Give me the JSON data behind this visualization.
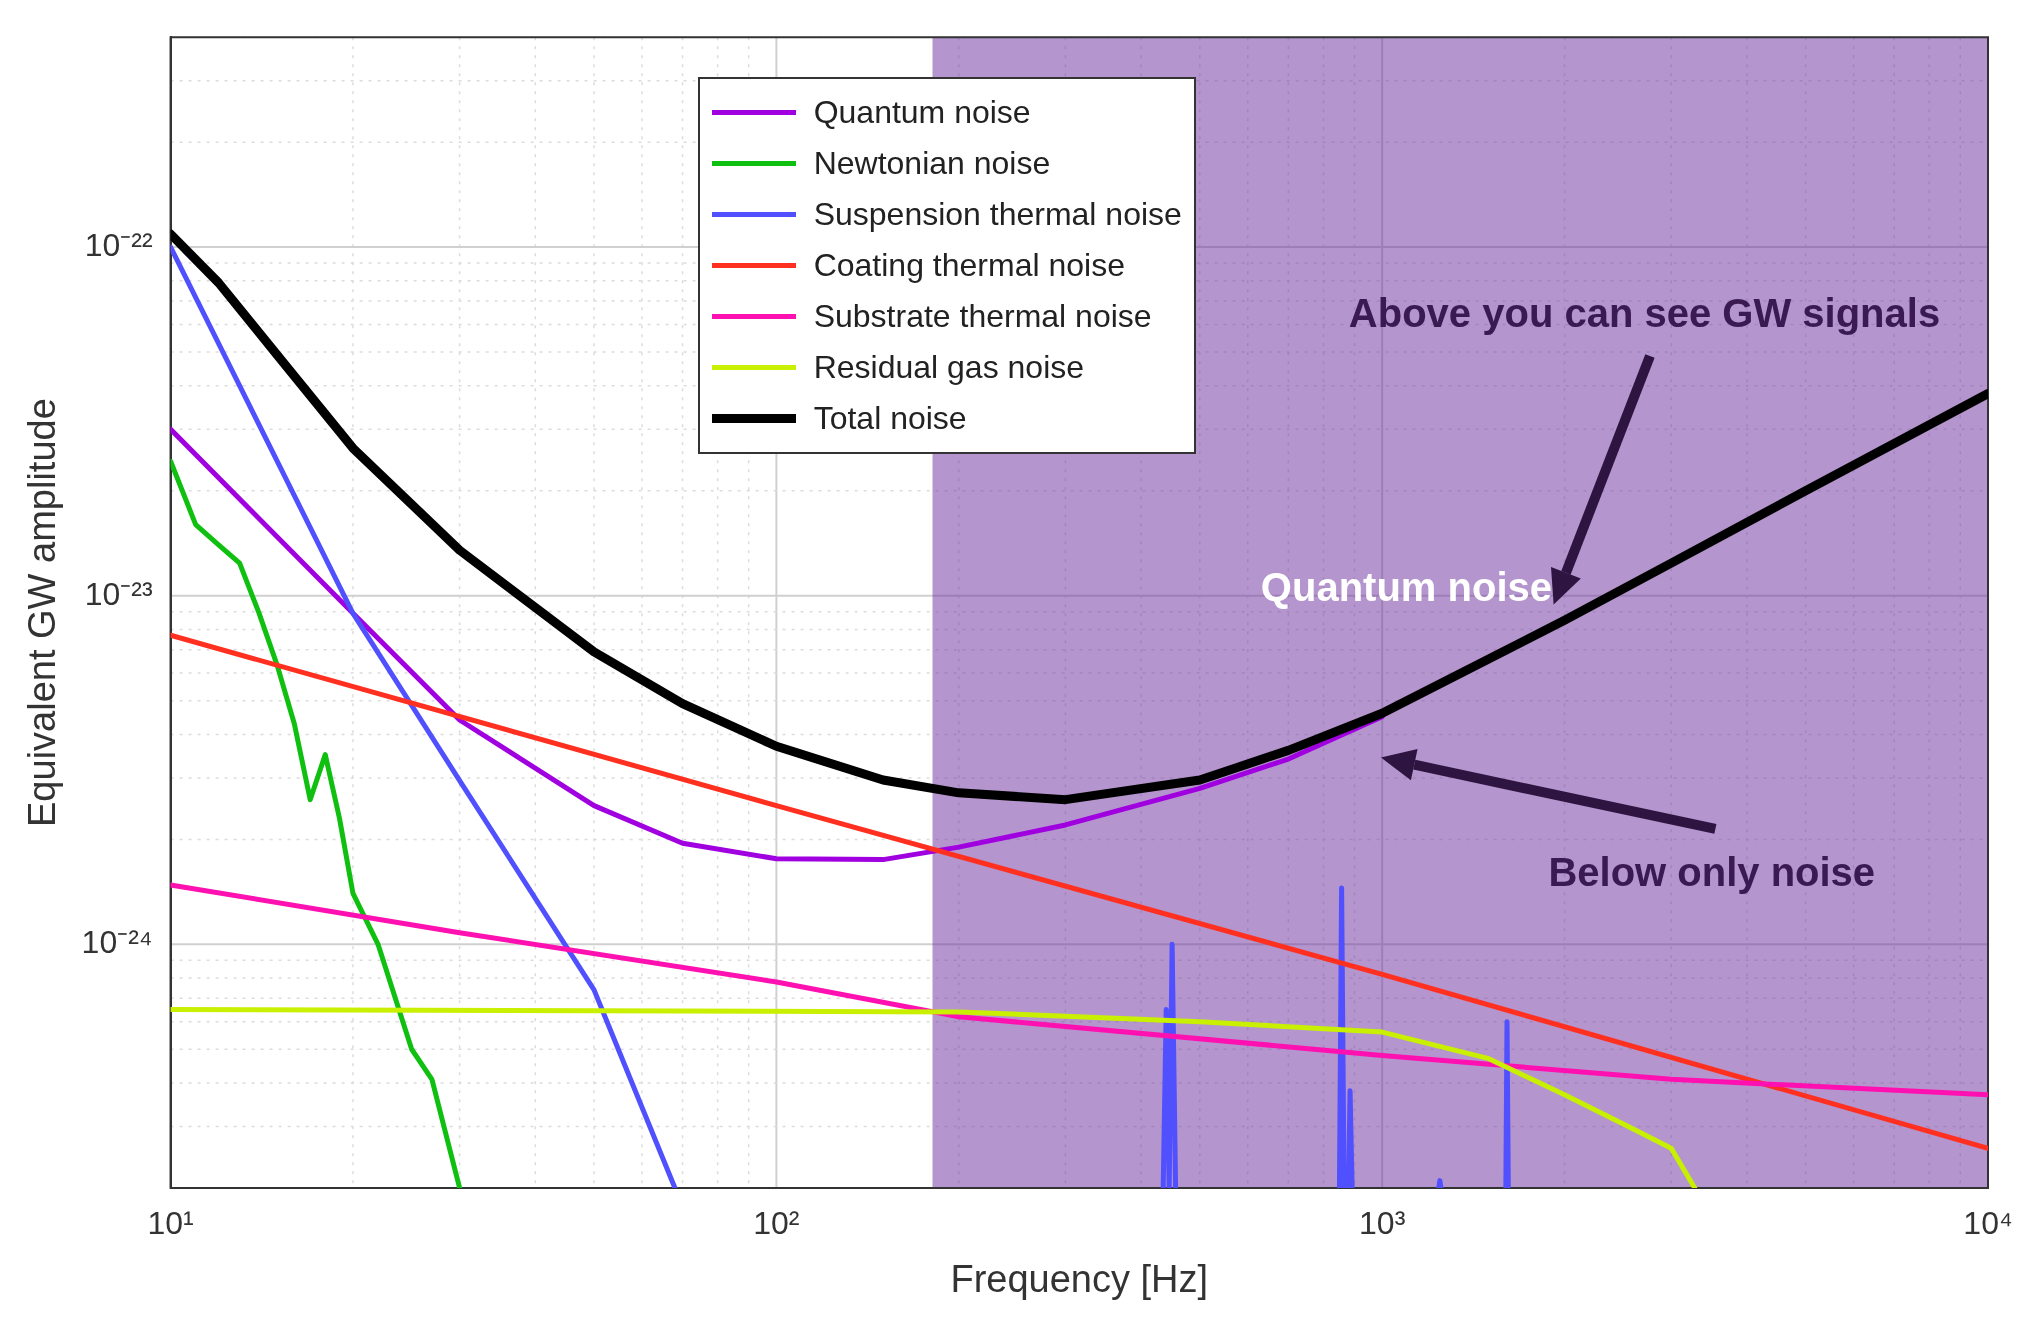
{
  "chart_data": {
    "type": "line",
    "xlabel": "Frequency [Hz]",
    "ylabel": "Equivalent GW amplitude",
    "log": "xy",
    "grid": true,
    "legend": "top",
    "line_style": "solid",
    "marker": "none",
    "xlim": [
      10,
      10000
    ],
    "ylim": [
      2e-25,
      4e-22
    ],
    "xticks": [
      {
        "value": 10,
        "label": "10¹"
      },
      {
        "value": 20,
        "label": null
      },
      {
        "value": 30,
        "label": null
      },
      {
        "value": 40,
        "label": null
      },
      {
        "value": 50,
        "label": null
      },
      {
        "value": 60,
        "label": null
      },
      {
        "value": 70,
        "label": null
      },
      {
        "value": 80,
        "label": null
      },
      {
        "value": 90,
        "label": null
      },
      {
        "value": 100,
        "label": "10²"
      },
      {
        "value": 200,
        "label": null
      },
      {
        "value": 300,
        "label": null
      },
      {
        "value": 400,
        "label": null
      },
      {
        "value": 500,
        "label": null
      },
      {
        "value": 600,
        "label": null
      },
      {
        "value": 700,
        "label": null
      },
      {
        "value": 800,
        "label": null
      },
      {
        "value": 900,
        "label": null
      },
      {
        "value": 1000,
        "label": "10³"
      },
      {
        "value": 2000,
        "label": null
      },
      {
        "value": 3000,
        "label": null
      },
      {
        "value": 4000,
        "label": null
      },
      {
        "value": 5000,
        "label": null
      },
      {
        "value": 6000,
        "label": null
      },
      {
        "value": 7000,
        "label": null
      },
      {
        "value": 8000,
        "label": null
      },
      {
        "value": 9000,
        "label": null
      },
      {
        "value": 10000,
        "label": "10⁴"
      }
    ],
    "yticks": [
      {
        "value": 2e-25,
        "label": null
      },
      {
        "value": 3e-25,
        "label": null
      },
      {
        "value": 4e-25,
        "label": null
      },
      {
        "value": 5e-25,
        "label": null
      },
      {
        "value": 6e-25,
        "label": null
      },
      {
        "value": 7e-25,
        "label": null
      },
      {
        "value": 8e-25,
        "label": null
      },
      {
        "value": 9e-25,
        "label": null
      },
      {
        "value": 1e-24,
        "label": "10⁻²⁴"
      },
      {
        "value": 2e-24,
        "label": null
      },
      {
        "value": 3e-24,
        "label": null
      },
      {
        "value": 4e-24,
        "label": null
      },
      {
        "value": 5e-24,
        "label": null
      },
      {
        "value": 6e-24,
        "label": null
      },
      {
        "value": 7e-24,
        "label": null
      },
      {
        "value": 8e-24,
        "label": null
      },
      {
        "value": 9e-24,
        "label": null
      },
      {
        "value": 1e-23,
        "label": "10⁻²³"
      },
      {
        "value": 2e-23,
        "label": null
      },
      {
        "value": 3e-23,
        "label": null
      },
      {
        "value": 4e-23,
        "label": null
      },
      {
        "value": 5e-23,
        "label": null
      },
      {
        "value": 6e-23,
        "label": null
      },
      {
        "value": 7e-23,
        "label": null
      },
      {
        "value": 8e-23,
        "label": null
      },
      {
        "value": 9e-23,
        "label": null
      },
      {
        "value": 1e-22,
        "label": "10⁻²²"
      },
      {
        "value": 2e-22,
        "label": null
      },
      {
        "value": 3e-22,
        "label": null
      },
      {
        "value": 4e-22,
        "label": null
      }
    ],
    "series": [
      {
        "name": "Quantum noise",
        "color": "#a000e0",
        "x": [
          10,
          20,
          30,
          50,
          70,
          100,
          150,
          200,
          300,
          500,
          700,
          1000
        ],
        "values": [
          3e-23,
          8.9e-24,
          4.4e-24,
          2.5e-24,
          1.95e-24,
          1.76e-24,
          1.75e-24,
          1.9e-24,
          2.2e-24,
          2.8e-24,
          3.4e-24,
          4.5e-24
        ]
      },
      {
        "name": "Newtonian noise",
        "color": "#10c010",
        "x": [
          10,
          11,
          12,
          13,
          14,
          15,
          16,
          17,
          18,
          19,
          20,
          22,
          25,
          27,
          30
        ],
        "values": [
          2.43e-23,
          1.6e-23,
          1.4e-23,
          1.24e-23,
          8.9e-24,
          6.3e-24,
          4.3e-24,
          2.6e-24,
          3.5e-24,
          2.3e-24,
          1.4e-24,
          1e-24,
          5e-25,
          4.1e-25,
          2e-25
        ]
      },
      {
        "name": "Suspension thermal noise",
        "color": "#5050ff",
        "x": [
          10,
          20,
          30,
          50,
          68,
          100,
          435,
          440,
          445,
          450,
          456,
          600,
          850,
          857,
          865,
          880,
          885,
          892,
          1000,
          1240,
          1245,
          1250,
          1400,
          1600,
          1607,
          1615
        ],
        "values": [
          1e-22,
          8.9e-24,
          2.95e-24,
          7.4e-25,
          2e-25,
          null,
          2e-25,
          6.5e-25,
          2e-25,
          1e-24,
          2e-25,
          null,
          2e-25,
          1.45e-24,
          2e-25,
          2e-25,
          3.8e-25,
          2e-25,
          null,
          2e-25,
          2.1e-25,
          2e-25,
          null,
          2e-25,
          6e-25,
          2e-25
        ]
      },
      {
        "name": "Coating thermal noise",
        "color": "#ff3020",
        "x": [
          10,
          100,
          1000,
          10000
        ],
        "values": [
          7.7e-24,
          2.5e-24,
          8.2e-25,
          2.6e-25
        ]
      },
      {
        "name": "Substrate thermal noise",
        "color": "#ff10b0",
        "x": [
          10,
          30,
          100,
          200,
          1000,
          3000,
          10000
        ],
        "values": [
          1.48e-24,
          1.08e-24,
          7.8e-25,
          6.2e-25,
          4.8e-25,
          4.1e-25,
          3.7e-25
        ]
      },
      {
        "name": "Residual gas noise",
        "color": "#c8f000",
        "x": [
          10,
          200,
          500,
          1000,
          1500,
          2000,
          2500,
          3000,
          3280
        ],
        "values": [
          6.5e-25,
          6.4e-25,
          6e-25,
          5.6e-25,
          4.7e-25,
          3.7e-25,
          3.05e-25,
          2.6e-25,
          2e-25
        ]
      },
      {
        "name": "Total noise",
        "color": "#000000",
        "x": [
          10,
          12,
          15,
          20,
          30,
          50,
          70,
          100,
          150,
          200,
          300,
          500,
          700,
          1000,
          2000,
          3000,
          5000,
          10000
        ],
        "values": [
          1.09e-22,
          7.9e-23,
          4.9e-23,
          2.65e-23,
          1.35e-23,
          6.9e-24,
          4.9e-24,
          3.7e-24,
          2.96e-24,
          2.72e-24,
          2.6e-24,
          2.96e-24,
          3.6e-24,
          4.6e-24,
          8.5e-24,
          1.24e-23,
          2e-23,
          3.8e-23
        ]
      }
    ],
    "bands": [
      {
        "axis": "x",
        "from": 181,
        "to": 10000,
        "color": "#6a2c9e"
      }
    ],
    "annotations": [
      "Above you can see GW signals",
      "Quantum noise",
      "Below only noise"
    ]
  }
}
